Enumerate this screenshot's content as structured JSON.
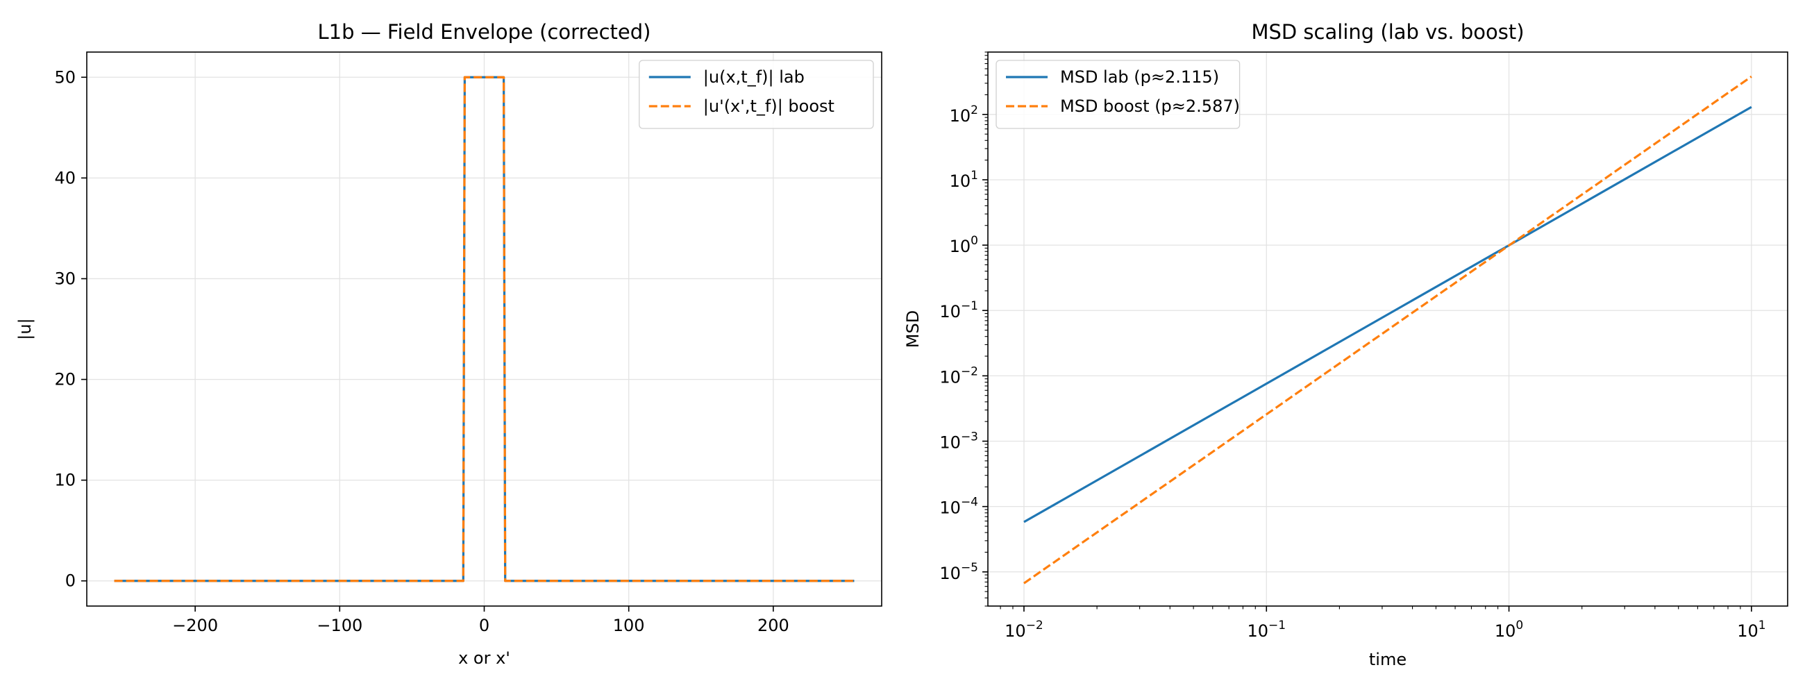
{
  "chart_data": [
    {
      "type": "line",
      "title": "L1b — Field Envelope (corrected)",
      "xlabel": "x or x'",
      "ylabel": "|u|",
      "xlim": [
        -275,
        275
      ],
      "ylim": [
        -2.5,
        52.5
      ],
      "x_ticks": [
        -200,
        -100,
        0,
        100,
        200
      ],
      "x_tick_labels": [
        "−200",
        "−100",
        "0",
        "100",
        "200"
      ],
      "y_ticks": [
        0,
        10,
        20,
        30,
        40,
        50
      ],
      "y_tick_labels": [
        "0",
        "10",
        "20",
        "30",
        "40",
        "50"
      ],
      "grid": true,
      "legend_position": "top-right",
      "series": [
        {
          "name": "|u(x,t_f)| lab",
          "color": "#1f77b4",
          "style": "solid",
          "x": [
            -256,
            -14.5,
            -13.5,
            13.5,
            14.5,
            256
          ],
          "y": [
            0,
            0,
            50,
            50,
            0,
            0
          ]
        },
        {
          "name": "|u'(x',t_f)| boost",
          "color": "#ff7f0e",
          "style": "dashed",
          "x": [
            -256,
            -14.5,
            -13.5,
            13.5,
            14.5,
            256
          ],
          "y": [
            0,
            0,
            50,
            50,
            0,
            0
          ]
        }
      ]
    },
    {
      "type": "line",
      "title": "MSD scaling (lab vs. boost)",
      "xlabel": "time",
      "ylabel": "MSD",
      "xscale": "log",
      "yscale": "log",
      "xlim": [
        0.0071,
        14.1
      ],
      "ylim": [
        3e-06,
        900
      ],
      "x_ticks": [
        0.01,
        0.1,
        1,
        10
      ],
      "x_tick_labels": [
        {
          "base": "10",
          "exp": "−2"
        },
        {
          "base": "10",
          "exp": "−1"
        },
        {
          "base": "10",
          "exp": "0"
        },
        {
          "base": "10",
          "exp": "1"
        }
      ],
      "y_ticks": [
        1e-05,
        0.0001,
        0.001,
        0.01,
        0.1,
        1,
        10,
        100
      ],
      "y_tick_labels": [
        {
          "base": "10",
          "exp": "−5"
        },
        {
          "base": "10",
          "exp": "−4"
        },
        {
          "base": "10",
          "exp": "−3"
        },
        {
          "base": "10",
          "exp": "−2"
        },
        {
          "base": "10",
          "exp": "−1"
        },
        {
          "base": "10",
          "exp": "0"
        },
        {
          "base": "10",
          "exp": "1"
        },
        {
          "base": "10",
          "exp": "2"
        }
      ],
      "grid": true,
      "legend_position": "top-left",
      "series": [
        {
          "name": "MSD lab (p≈2.115)",
          "color": "#1f77b4",
          "style": "solid",
          "x": [
            0.01,
            10
          ],
          "y": [
            5.8e-05,
            130
          ]
        },
        {
          "name": "MSD boost (p≈2.587)",
          "color": "#ff7f0e",
          "style": "dashed",
          "x": [
            0.01,
            10
          ],
          "y": [
            6.7e-06,
            380
          ]
        }
      ]
    }
  ]
}
